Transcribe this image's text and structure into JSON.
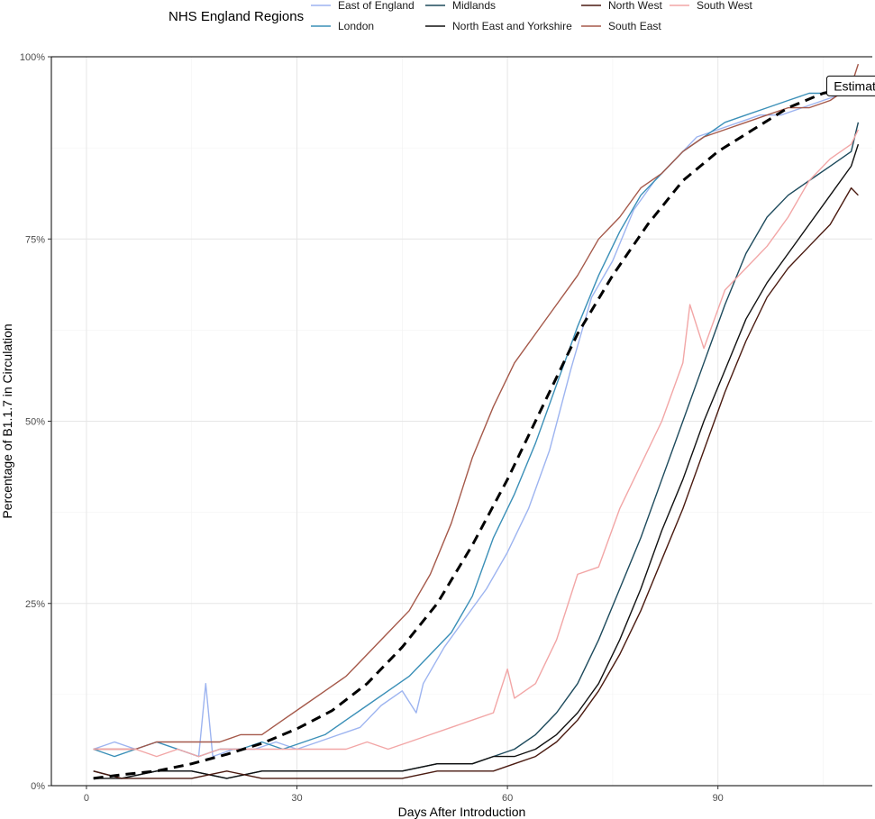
{
  "chart_data": {
    "type": "line",
    "xlabel": "Days After Introduction",
    "ylabel": "Percentage of B1.1.7 in Circulation",
    "xlim": [
      -5,
      112
    ],
    "ylim": [
      0,
      100
    ],
    "x_ticks": [
      0,
      30,
      60,
      90
    ],
    "y_ticks": [
      0,
      25,
      50,
      75,
      100
    ],
    "x_tick_labels": [
      "0",
      "30",
      "60",
      "90"
    ],
    "y_tick_labels": [
      "0%",
      "25%",
      "50%",
      "75%",
      "100%"
    ],
    "grid": true,
    "legend": {
      "title": "NHS England Regions",
      "position": "top",
      "entries": [
        {
          "name": "East of England",
          "color": "#9db4f0"
        },
        {
          "name": "London",
          "color": "#3a8fb7"
        },
        {
          "name": "Midlands",
          "color": "#1d4a5c"
        },
        {
          "name": "North East and Yorkshire",
          "color": "#111111"
        },
        {
          "name": "North West",
          "color": "#4a1a10"
        },
        {
          "name": "South East",
          "color": "#a5594a"
        },
        {
          "name": "South West",
          "color": "#f2a6a6"
        }
      ]
    },
    "annotation": {
      "text": "Estimate",
      "x": 110,
      "y": 96
    },
    "series": [
      {
        "name": "East of England",
        "color": "#9db4f0",
        "x": [
          1,
          4,
          7,
          10,
          13,
          16,
          17,
          18,
          21,
          24,
          27,
          30,
          33,
          36,
          39,
          42,
          45,
          47,
          48,
          51,
          54,
          57,
          60,
          63,
          66,
          69,
          72,
          75,
          78,
          81,
          84,
          87,
          90,
          93,
          96,
          99,
          102,
          105,
          108,
          110
        ],
        "y": [
          5,
          6,
          5,
          6,
          5,
          4,
          14,
          4,
          5,
          5,
          6,
          5,
          6,
          7,
          8,
          11,
          13,
          10,
          14,
          19,
          23,
          27,
          32,
          38,
          46,
          57,
          67,
          72,
          79,
          83,
          86,
          89,
          90,
          91,
          92,
          92,
          93,
          94,
          95,
          96
        ]
      },
      {
        "name": "London",
        "color": "#3a8fb7",
        "x": [
          1,
          4,
          7,
          10,
          13,
          16,
          19,
          22,
          25,
          28,
          31,
          34,
          37,
          40,
          43,
          46,
          49,
          52,
          55,
          58,
          61,
          64,
          67,
          70,
          73,
          76,
          79,
          82,
          85,
          88,
          91,
          94,
          97,
          100,
          103,
          106,
          109
        ],
        "y": [
          5,
          4,
          5,
          6,
          5,
          4,
          5,
          5,
          6,
          5,
          6,
          7,
          9,
          11,
          13,
          15,
          18,
          21,
          26,
          34,
          40,
          47,
          55,
          63,
          70,
          76,
          81,
          84,
          87,
          89,
          91,
          92,
          93,
          94,
          95,
          95,
          96
        ]
      },
      {
        "name": "Midlands",
        "color": "#1d4a5c",
        "x": [
          1,
          5,
          10,
          15,
          20,
          25,
          30,
          35,
          40,
          45,
          50,
          55,
          58,
          61,
          64,
          67,
          70,
          73,
          76,
          79,
          82,
          85,
          88,
          91,
          94,
          97,
          100,
          103,
          106,
          109,
          110
        ],
        "y": [
          2,
          1,
          2,
          2,
          1,
          2,
          2,
          2,
          2,
          2,
          3,
          3,
          4,
          5,
          7,
          10,
          14,
          20,
          27,
          34,
          42,
          50,
          58,
          66,
          73,
          78,
          81,
          83,
          85,
          87,
          91
        ]
      },
      {
        "name": "North East and Yorkshire",
        "color": "#111111",
        "x": [
          1,
          5,
          10,
          15,
          20,
          25,
          30,
          35,
          40,
          45,
          50,
          55,
          58,
          61,
          64,
          67,
          70,
          73,
          76,
          79,
          82,
          85,
          88,
          91,
          94,
          97,
          100,
          103,
          106,
          109,
          110
        ],
        "y": [
          1,
          1,
          2,
          2,
          1,
          2,
          2,
          2,
          2,
          2,
          3,
          3,
          4,
          4,
          5,
          7,
          10,
          14,
          20,
          27,
          35,
          42,
          50,
          57,
          64,
          69,
          73,
          77,
          81,
          85,
          88
        ]
      },
      {
        "name": "North West",
        "color": "#4a1a10",
        "x": [
          1,
          5,
          10,
          15,
          20,
          25,
          30,
          35,
          40,
          45,
          50,
          55,
          58,
          61,
          64,
          67,
          70,
          73,
          76,
          79,
          82,
          85,
          88,
          91,
          94,
          97,
          100,
          103,
          106,
          109,
          110
        ],
        "y": [
          2,
          1,
          1,
          1,
          2,
          1,
          1,
          1,
          1,
          1,
          2,
          2,
          2,
          3,
          4,
          6,
          9,
          13,
          18,
          24,
          31,
          38,
          46,
          54,
          61,
          67,
          71,
          74,
          77,
          82,
          81
        ]
      },
      {
        "name": "South East",
        "color": "#a5594a",
        "x": [
          1,
          4,
          7,
          10,
          13,
          16,
          19,
          22,
          25,
          28,
          31,
          34,
          37,
          40,
          43,
          46,
          49,
          52,
          55,
          58,
          61,
          64,
          67,
          70,
          73,
          76,
          79,
          82,
          85,
          88,
          91,
          94,
          97,
          100,
          103,
          106,
          109,
          110
        ],
        "y": [
          5,
          5,
          5,
          6,
          6,
          6,
          6,
          7,
          7,
          9,
          11,
          13,
          15,
          18,
          21,
          24,
          29,
          36,
          45,
          52,
          58,
          62,
          66,
          70,
          75,
          78,
          82,
          84,
          87,
          89,
          90,
          91,
          92,
          93,
          93,
          94,
          96,
          99
        ]
      },
      {
        "name": "South West",
        "color": "#f2a6a6",
        "x": [
          1,
          4,
          7,
          10,
          13,
          16,
          19,
          22,
          25,
          28,
          31,
          34,
          37,
          40,
          43,
          46,
          49,
          52,
          55,
          58,
          60,
          61,
          64,
          67,
          70,
          73,
          76,
          79,
          82,
          85,
          86,
          88,
          91,
          94,
          97,
          100,
          103,
          106,
          109,
          110
        ],
        "y": [
          5,
          5,
          5,
          4,
          5,
          4,
          5,
          5,
          5,
          5,
          5,
          5,
          5,
          6,
          5,
          6,
          7,
          8,
          9,
          10,
          16,
          12,
          14,
          20,
          29,
          30,
          38,
          44,
          50,
          58,
          66,
          60,
          68,
          71,
          74,
          78,
          83,
          86,
          88,
          90
        ]
      },
      {
        "name": "Estimate",
        "color": "#000000",
        "dashed": true,
        "x": [
          1,
          5,
          10,
          15,
          20,
          25,
          30,
          35,
          40,
          45,
          50,
          55,
          60,
          65,
          70,
          75,
          80,
          85,
          90,
          95,
          100,
          105,
          110
        ],
        "y": [
          1,
          1.5,
          2,
          3,
          4.3,
          5.8,
          7.8,
          10.3,
          14,
          19,
          25,
          33,
          42,
          52,
          62,
          70,
          77,
          83,
          87,
          90,
          93,
          95,
          96
        ]
      }
    ]
  }
}
